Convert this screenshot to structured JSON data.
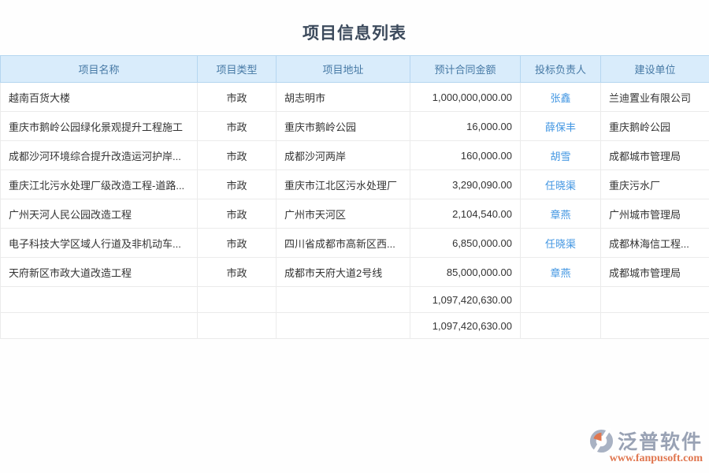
{
  "title": "项目信息列表",
  "table": {
    "columns": [
      {
        "label": "项目名称"
      },
      {
        "label": "项目类型"
      },
      {
        "label": "项目地址"
      },
      {
        "label": "预计合同金额"
      },
      {
        "label": "投标负责人"
      },
      {
        "label": "建设单位"
      }
    ],
    "rows": [
      {
        "name": "越南百货大楼",
        "type": "市政",
        "address": "胡志明市",
        "amount": "1,000,000,000.00",
        "leader": "张鑫",
        "unit": "兰迪置业有限公司"
      },
      {
        "name": "重庆市鹅岭公园绿化景观提升工程施工",
        "type": "市政",
        "address": "重庆市鹅岭公园",
        "amount": "16,000.00",
        "leader": "薛保丰",
        "unit": "重庆鹅岭公园"
      },
      {
        "name": "成都沙河环境综合提升改造运河护岸...",
        "type": "市政",
        "address": "成都沙河两岸",
        "amount": "160,000.00",
        "leader": "胡雪",
        "unit": "成都城市管理局"
      },
      {
        "name": "重庆江北污水处理厂级改造工程-道路...",
        "type": "市政",
        "address": "重庆市江北区污水处理厂",
        "amount": "3,290,090.00",
        "leader": "任晓渠",
        "unit": "重庆污水厂"
      },
      {
        "name": "广州天河人民公园改造工程",
        "type": "市政",
        "address": "广州市天河区",
        "amount": "2,104,540.00",
        "leader": "章燕",
        "unit": "广州城市管理局"
      },
      {
        "name": "电子科技大学区域人行道及非机动车...",
        "type": "市政",
        "address": "四川省成都市高新区西...",
        "amount": "6,850,000.00",
        "leader": "任晓渠",
        "unit": "成都林海信工程..."
      },
      {
        "name": "天府新区市政大道改造工程",
        "type": "市政",
        "address": "成都市天府大道2号线",
        "amount": "85,000,000.00",
        "leader": "章燕",
        "unit": "成都城市管理局"
      }
    ],
    "total_rows": [
      {
        "amount": "1,097,420,630.00"
      },
      {
        "amount": "1,097,420,630.00"
      }
    ]
  },
  "footer": {
    "brand": "泛普软件",
    "url": "www.fanpusoft.com"
  },
  "colors": {
    "title_text": "#3c4a5c",
    "header_bg": "#d9ecfb",
    "header_text": "#4679a5",
    "header_border": "#b5d6f0",
    "row_border": "#ebebeb",
    "link_blue": "#4296e2",
    "body_text": "#333333",
    "brand_gray": "#99a2b4",
    "url_orange": "#e0764f"
  }
}
